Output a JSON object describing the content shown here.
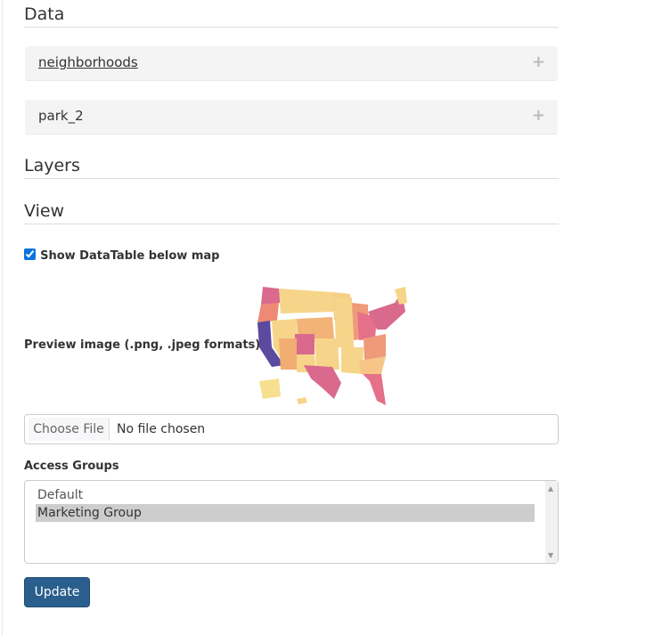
{
  "sections": {
    "data": "Data",
    "layers": "Layers",
    "view": "View"
  },
  "datasets": [
    {
      "label": "neighborhoods",
      "icon": "plus-icon",
      "expand": "+"
    },
    {
      "label": "park_2",
      "icon": "plus-icon",
      "expand": "+"
    }
  ],
  "view": {
    "show_datatable_label": "Show DataTable below map",
    "show_datatable_checked": true,
    "preview_label": "Preview image (.png, .jpeg formats)",
    "choose_file": "Choose File",
    "no_file": "No file chosen"
  },
  "access": {
    "label": "Access Groups",
    "options": [
      "Default",
      "Marketing Group"
    ],
    "selected": "Marketing Group"
  },
  "update_label": "Update",
  "colors": {
    "button": "#2a5f8d",
    "selected_option": "#cdcdcd",
    "panel": "#f4f4f4"
  }
}
